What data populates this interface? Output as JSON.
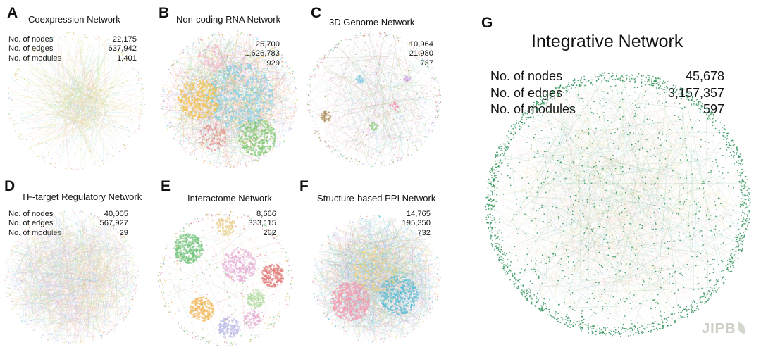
{
  "panels": [
    {
      "letter": "A",
      "title": "Coexpression Network",
      "stats": [
        {
          "label": "No. of nodes",
          "value": "22,175"
        },
        {
          "label": "No. of edges",
          "value": "637,942"
        },
        {
          "label": "No. of modules",
          "value": "1,401"
        }
      ]
    },
    {
      "letter": "B",
      "title": "Non-coding RNA Network",
      "stats": [
        {
          "label": "",
          "value": "25,700"
        },
        {
          "label": "",
          "value": "1,626,783"
        },
        {
          "label": "",
          "value": "929"
        }
      ]
    },
    {
      "letter": "C",
      "title": "3D Genome Network",
      "stats": [
        {
          "label": "",
          "value": "10,964"
        },
        {
          "label": "",
          "value": "21,980"
        },
        {
          "label": "",
          "value": "737"
        }
      ]
    },
    {
      "letter": "D",
      "title": "TF-target Regulatory Network",
      "stats": [
        {
          "label": "No. of nodes",
          "value": "40,005"
        },
        {
          "label": "No. of edges",
          "value": "567,927"
        },
        {
          "label": "No. of modules",
          "value": "29"
        }
      ]
    },
    {
      "letter": "E",
      "title": "Interactome Network",
      "stats": [
        {
          "label": "",
          "value": "8,666"
        },
        {
          "label": "",
          "value": "333,115"
        },
        {
          "label": "",
          "value": "262"
        }
      ]
    },
    {
      "letter": "F",
      "title": "Structure-based PPI Network",
      "stats": [
        {
          "label": "",
          "value": "14,765"
        },
        {
          "label": "",
          "value": "195,350"
        },
        {
          "label": "",
          "value": "732"
        }
      ]
    }
  ],
  "integrative": {
    "letter": "G",
    "title": "Integrative Network",
    "stats": [
      {
        "label": "No. of nodes",
        "value": "45,678"
      },
      {
        "label": "No. of edges",
        "value": "3,157,357"
      },
      {
        "label": "No. of modules",
        "value": "597"
      }
    ]
  },
  "logo": "JIPB",
  "colors": {
    "a": [
      "#c6d86a",
      "#f2b5c8",
      "#9fd4e6",
      "#f7c98a",
      "#cfe8a8"
    ],
    "b": [
      "#7fd0e3",
      "#f5c04a",
      "#80c871",
      "#e58f8f",
      "#c9a4e0",
      "#f2b5c8"
    ],
    "c": [
      "#87cbe0",
      "#f0a7c0",
      "#9bd08a",
      "#b08d5a",
      "#d6b5e5"
    ],
    "d": [
      "#8fd3e6",
      "#f4b6c9",
      "#bfe08f",
      "#f7c98a",
      "#b9b1e6"
    ],
    "e": [
      "#74c57f",
      "#e6b0d6",
      "#e27d7d",
      "#f2b85c",
      "#b8b9e8",
      "#b5dba5",
      "#e8cc86"
    ],
    "f": [
      "#f29ab1",
      "#54bcd3",
      "#f2d075",
      "#8fd0a0",
      "#c2a7e0",
      "#9fd3ea"
    ],
    "g": [
      "#1f8a4c",
      "#8fcbe0",
      "#f3b3c4",
      "#c9db79",
      "#f1c27f"
    ]
  }
}
